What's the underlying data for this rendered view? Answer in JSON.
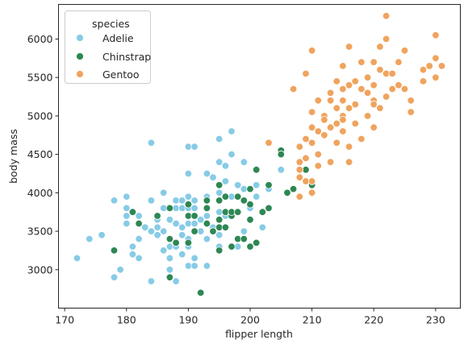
{
  "chart_data": {
    "type": "scatter",
    "xlabel": "flipper length",
    "ylabel": "body mass",
    "xlim": [
      169,
      234
    ],
    "ylim": [
      2500,
      6450
    ],
    "xticks": [
      170,
      180,
      190,
      200,
      210,
      220,
      230
    ],
    "yticks": [
      3000,
      3500,
      4000,
      4500,
      5000,
      5500,
      6000
    ],
    "grid": false,
    "legend": {
      "title": "species",
      "placement": "top-left"
    },
    "series": [
      {
        "name": "Adelie",
        "color": "#87cbe6",
        "points": [
          [
            172,
            3150
          ],
          [
            174,
            3400
          ],
          [
            176,
            3450
          ],
          [
            178,
            2900
          ],
          [
            178,
            3900
          ],
          [
            179,
            3000
          ],
          [
            180,
            3700
          ],
          [
            180,
            3800
          ],
          [
            180,
            3950
          ],
          [
            180,
            3600
          ],
          [
            181,
            3300
          ],
          [
            181,
            3200
          ],
          [
            182,
            3150
          ],
          [
            182,
            3400
          ],
          [
            182,
            3700
          ],
          [
            183,
            3550
          ],
          [
            184,
            4650
          ],
          [
            184,
            3500
          ],
          [
            184,
            3900
          ],
          [
            184,
            2850
          ],
          [
            185,
            3450
          ],
          [
            185,
            3650
          ],
          [
            185,
            3550
          ],
          [
            185,
            3700
          ],
          [
            186,
            3250
          ],
          [
            186,
            3800
          ],
          [
            186,
            3500
          ],
          [
            186,
            4000
          ],
          [
            187,
            3400
          ],
          [
            187,
            3650
          ],
          [
            187,
            3300
          ],
          [
            187,
            3150
          ],
          [
            187,
            3000
          ],
          [
            188,
            3600
          ],
          [
            188,
            3800
          ],
          [
            188,
            3900
          ],
          [
            188,
            2850
          ],
          [
            188,
            3300
          ],
          [
            189,
            3450
          ],
          [
            189,
            3200
          ],
          [
            189,
            3550
          ],
          [
            189,
            3800
          ],
          [
            189,
            3900
          ],
          [
            190,
            3050
          ],
          [
            190,
            3400
          ],
          [
            190,
            3600
          ],
          [
            190,
            3800
          ],
          [
            190,
            3950
          ],
          [
            190,
            4250
          ],
          [
            190,
            3300
          ],
          [
            190,
            4600
          ],
          [
            191,
            3150
          ],
          [
            191,
            3600
          ],
          [
            191,
            3800
          ],
          [
            191,
            4600
          ],
          [
            191,
            3050
          ],
          [
            191,
            3700
          ],
          [
            191,
            3900
          ],
          [
            192,
            3500
          ],
          [
            192,
            3650
          ],
          [
            193,
            3050
          ],
          [
            193,
            3400
          ],
          [
            193,
            3700
          ],
          [
            193,
            3950
          ],
          [
            193,
            4250
          ],
          [
            194,
            4200
          ],
          [
            194,
            3550
          ],
          [
            195,
            3300
          ],
          [
            195,
            3450
          ],
          [
            195,
            3750
          ],
          [
            195,
            4000
          ],
          [
            195,
            4400
          ],
          [
            195,
            4700
          ],
          [
            196,
            3550
          ],
          [
            196,
            4150
          ],
          [
            196,
            4350
          ],
          [
            196,
            3700
          ],
          [
            197,
            3950
          ],
          [
            197,
            4500
          ],
          [
            197,
            4800
          ],
          [
            197,
            3300
          ],
          [
            198,
            3300
          ],
          [
            198,
            3750
          ],
          [
            198,
            4100
          ],
          [
            199,
            3500
          ],
          [
            199,
            4050
          ],
          [
            199,
            4400
          ],
          [
            200,
            3800
          ],
          [
            201,
            4100
          ],
          [
            201,
            3950
          ],
          [
            202,
            3550
          ],
          [
            203,
            4050
          ],
          [
            205,
            4300
          ]
        ]
      },
      {
        "name": "Chinstrap",
        "color": "#2e8753",
        "points": [
          [
            178,
            3250
          ],
          [
            181,
            3750
          ],
          [
            182,
            3600
          ],
          [
            185,
            3700
          ],
          [
            187,
            3400
          ],
          [
            187,
            2900
          ],
          [
            187,
            3800
          ],
          [
            188,
            3350
          ],
          [
            190,
            3350
          ],
          [
            190,
            3700
          ],
          [
            190,
            3850
          ],
          [
            191,
            3500
          ],
          [
            191,
            3700
          ],
          [
            192,
            2700
          ],
          [
            193,
            3600
          ],
          [
            193,
            3800
          ],
          [
            193,
            3900
          ],
          [
            194,
            3500
          ],
          [
            195,
            3250
          ],
          [
            195,
            3550
          ],
          [
            195,
            3900
          ],
          [
            195,
            4100
          ],
          [
            195,
            3650
          ],
          [
            196,
            3550
          ],
          [
            196,
            3750
          ],
          [
            196,
            3950
          ],
          [
            197,
            3300
          ],
          [
            197,
            3700
          ],
          [
            197,
            3750
          ],
          [
            198,
            3400
          ],
          [
            198,
            3750
          ],
          [
            198,
            3950
          ],
          [
            199,
            3400
          ],
          [
            199,
            3900
          ],
          [
            200,
            3300
          ],
          [
            200,
            3650
          ],
          [
            200,
            3850
          ],
          [
            200,
            4050
          ],
          [
            201,
            3350
          ],
          [
            201,
            4300
          ],
          [
            202,
            3750
          ],
          [
            203,
            3800
          ],
          [
            203,
            4100
          ],
          [
            205,
            4550
          ],
          [
            205,
            4500
          ],
          [
            206,
            4000
          ],
          [
            207,
            4050
          ],
          [
            209,
            4300
          ],
          [
            210,
            4100
          ]
        ]
      },
      {
        "name": "Gentoo",
        "color": "#f0a35e",
        "points": [
          [
            203,
            4650
          ],
          [
            207,
            5350
          ],
          [
            208,
            3950
          ],
          [
            208,
            4400
          ],
          [
            208,
            4600
          ],
          [
            208,
            4300
          ],
          [
            208,
            4200
          ],
          [
            209,
            4700
          ],
          [
            209,
            4450
          ],
          [
            209,
            4150
          ],
          [
            209,
            5550
          ],
          [
            210,
            4000
          ],
          [
            210,
            4150
          ],
          [
            210,
            4650
          ],
          [
            210,
            4850
          ],
          [
            210,
            5050
          ],
          [
            210,
            5850
          ],
          [
            211,
            4800
          ],
          [
            211,
            4500
          ],
          [
            211,
            4350
          ],
          [
            211,
            5200
          ],
          [
            212,
            4750
          ],
          [
            212,
            5000
          ],
          [
            212,
            4950
          ],
          [
            213,
            4400
          ],
          [
            213,
            5300
          ],
          [
            213,
            5200
          ],
          [
            213,
            4850
          ],
          [
            214,
            4900
          ],
          [
            214,
            4650
          ],
          [
            214,
            5450
          ],
          [
            214,
            5100
          ],
          [
            215,
            4800
          ],
          [
            215,
            5000
          ],
          [
            215,
            5200
          ],
          [
            215,
            5650
          ],
          [
            215,
            5350
          ],
          [
            215,
            4950
          ],
          [
            216,
            4600
          ],
          [
            216,
            5100
          ],
          [
            216,
            5400
          ],
          [
            216,
            5900
          ],
          [
            216,
            4400
          ],
          [
            217,
            5150
          ],
          [
            217,
            5450
          ],
          [
            217,
            4900
          ],
          [
            218,
            5700
          ],
          [
            218,
            4700
          ],
          [
            218,
            5350
          ],
          [
            219,
            5000
          ],
          [
            219,
            5500
          ],
          [
            219,
            5300
          ],
          [
            220,
            4850
          ],
          [
            220,
            5200
          ],
          [
            220,
            5400
          ],
          [
            220,
            5700
          ],
          [
            220,
            5150
          ],
          [
            221,
            5100
          ],
          [
            221,
            5600
          ],
          [
            221,
            5900
          ],
          [
            222,
            5250
          ],
          [
            222,
            5550
          ],
          [
            222,
            6000
          ],
          [
            222,
            6300
          ],
          [
            223,
            5350
          ],
          [
            223,
            5550
          ],
          [
            224,
            5400
          ],
          [
            224,
            5700
          ],
          [
            225,
            5850
          ],
          [
            225,
            5350
          ],
          [
            226,
            5200
          ],
          [
            226,
            5050
          ],
          [
            228,
            5600
          ],
          [
            228,
            5450
          ],
          [
            229,
            5650
          ],
          [
            230,
            5750
          ],
          [
            230,
            5500
          ],
          [
            230,
            6050
          ],
          [
            231,
            5650
          ]
        ]
      }
    ]
  }
}
